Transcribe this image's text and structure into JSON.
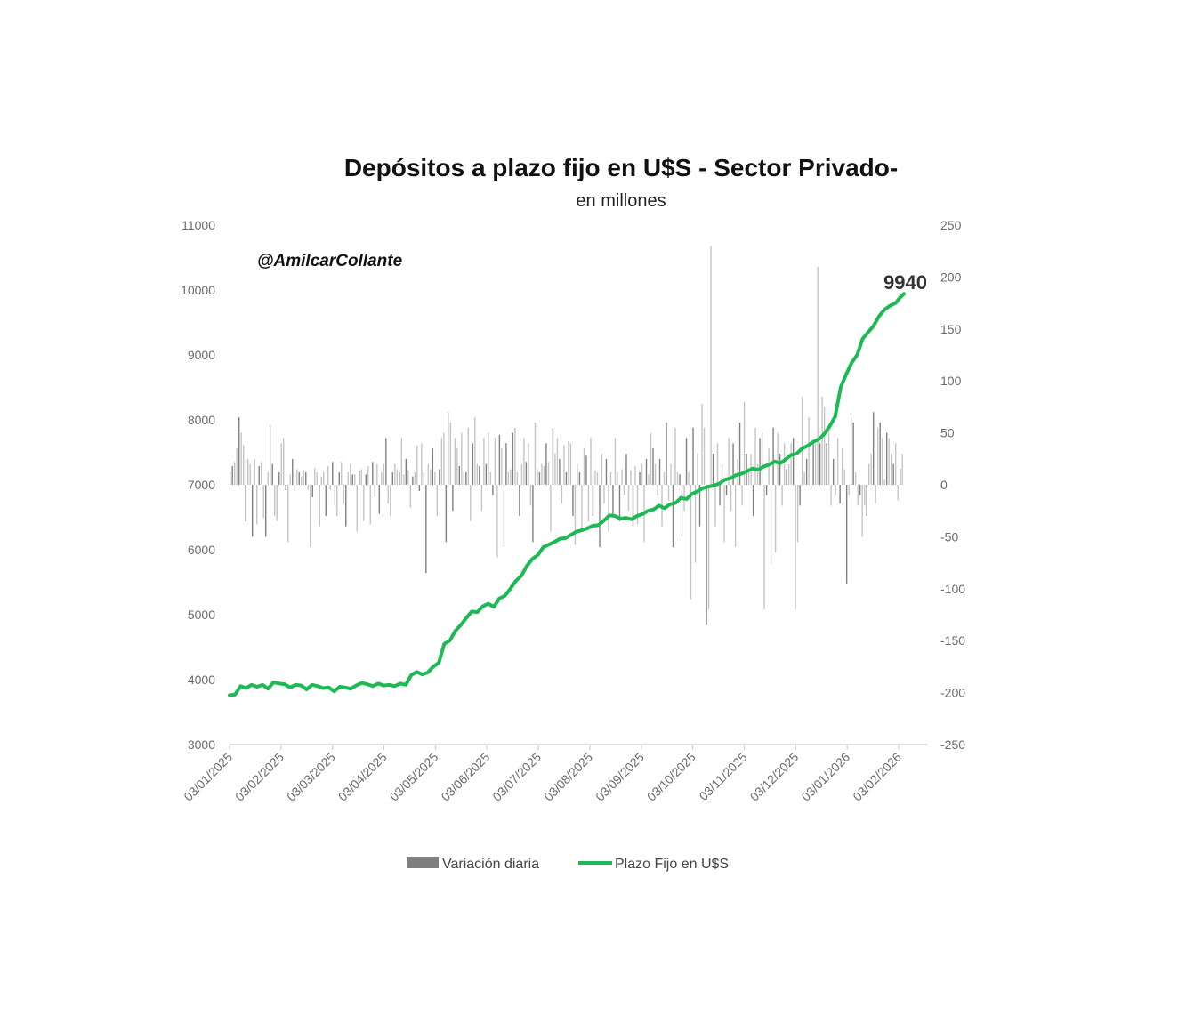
{
  "chart_data": {
    "type": "bar+line",
    "title": "Depósitos a plazo fijo en U$S - Sector Privado-",
    "subtitle": "en millones",
    "watermark": "@AmilcarCollante",
    "y_left": {
      "min": 3000,
      "max": 11000,
      "ticks": [
        "11000",
        "10000",
        "9000",
        "8000",
        "7000",
        "6000",
        "5000",
        "4000",
        "3000"
      ]
    },
    "y_right": {
      "min": -250,
      "max": 250,
      "ticks": [
        "250",
        "200",
        "150",
        "100",
        "50",
        "0",
        "-50",
        "-100",
        "-150",
        "-200",
        "-250"
      ]
    },
    "x_ticks": [
      "03/01/2025",
      "03/02/2025",
      "03/03/2025",
      "03/04/2025",
      "03/05/2025",
      "03/06/2025",
      "03/07/2025",
      "03/08/2025",
      "03/09/2025",
      "03/10/2025",
      "03/11/2025",
      "03/12/2025",
      "03/01/2026",
      "03/02/2026"
    ],
    "last_value_label": "9940",
    "legend": {
      "bars": "Variación diaria",
      "line": "Plazo Fijo en U$S"
    },
    "colors": {
      "line": "#1db954",
      "bars_dark": "#7f7f7f",
      "bars_light": "#c4c4c4",
      "axis": "#d0d0d0"
    },
    "line_series": {
      "name": "Plazo Fijo en U$S",
      "points": [
        [
          0,
          3760
        ],
        [
          4,
          3770
        ],
        [
          8,
          3900
        ],
        [
          12,
          3870
        ],
        [
          16,
          3920
        ],
        [
          20,
          3890
        ],
        [
          24,
          3920
        ],
        [
          28,
          3860
        ],
        [
          32,
          3960
        ],
        [
          36,
          3940
        ],
        [
          40,
          3930
        ],
        [
          44,
          3880
        ],
        [
          48,
          3920
        ],
        [
          52,
          3910
        ],
        [
          56,
          3850
        ],
        [
          60,
          3920
        ],
        [
          64,
          3900
        ],
        [
          68,
          3870
        ],
        [
          72,
          3880
        ],
        [
          76,
          3820
        ],
        [
          80,
          3890
        ],
        [
          84,
          3880
        ],
        [
          88,
          3860
        ],
        [
          92,
          3910
        ],
        [
          96,
          3950
        ],
        [
          100,
          3930
        ],
        [
          104,
          3900
        ],
        [
          108,
          3940
        ],
        [
          112,
          3910
        ],
        [
          116,
          3920
        ],
        [
          120,
          3900
        ],
        [
          124,
          3940
        ],
        [
          128,
          3920
        ],
        [
          132,
          4070
        ],
        [
          136,
          4120
        ],
        [
          140,
          4080
        ],
        [
          144,
          4110
        ],
        [
          148,
          4200
        ],
        [
          152,
          4260
        ],
        [
          156,
          4550
        ],
        [
          160,
          4600
        ],
        [
          164,
          4750
        ],
        [
          168,
          4840
        ],
        [
          172,
          4950
        ],
        [
          176,
          5050
        ],
        [
          180,
          5040
        ],
        [
          184,
          5130
        ],
        [
          188,
          5170
        ],
        [
          192,
          5120
        ],
        [
          196,
          5250
        ],
        [
          200,
          5290
        ],
        [
          204,
          5400
        ],
        [
          208,
          5520
        ],
        [
          212,
          5600
        ],
        [
          216,
          5750
        ],
        [
          220,
          5860
        ],
        [
          224,
          5920
        ],
        [
          228,
          6040
        ],
        [
          232,
          6080
        ],
        [
          236,
          6120
        ],
        [
          240,
          6170
        ],
        [
          244,
          6180
        ],
        [
          248,
          6230
        ],
        [
          252,
          6280
        ],
        [
          256,
          6300
        ],
        [
          260,
          6330
        ],
        [
          264,
          6370
        ],
        [
          268,
          6380
        ],
        [
          272,
          6450
        ],
        [
          276,
          6530
        ],
        [
          280,
          6520
        ],
        [
          284,
          6480
        ],
        [
          288,
          6490
        ],
        [
          292,
          6470
        ],
        [
          296,
          6520
        ],
        [
          300,
          6550
        ],
        [
          304,
          6600
        ],
        [
          308,
          6620
        ],
        [
          312,
          6680
        ],
        [
          316,
          6640
        ],
        [
          320,
          6700
        ],
        [
          324,
          6720
        ],
        [
          328,
          6800
        ],
        [
          332,
          6780
        ],
        [
          336,
          6860
        ],
        [
          340,
          6900
        ],
        [
          344,
          6950
        ],
        [
          348,
          6970
        ],
        [
          352,
          6990
        ],
        [
          356,
          7020
        ],
        [
          360,
          7080
        ],
        [
          364,
          7100
        ],
        [
          368,
          7150
        ],
        [
          372,
          7170
        ],
        [
          376,
          7210
        ],
        [
          380,
          7250
        ],
        [
          384,
          7230
        ],
        [
          388,
          7280
        ],
        [
          392,
          7310
        ],
        [
          396,
          7360
        ],
        [
          400,
          7330
        ],
        [
          404,
          7390
        ],
        [
          408,
          7460
        ],
        [
          412,
          7480
        ],
        [
          416,
          7560
        ],
        [
          420,
          7600
        ],
        [
          424,
          7660
        ],
        [
          428,
          7700
        ],
        [
          432,
          7780
        ],
        [
          436,
          7900
        ],
        [
          440,
          8050
        ],
        [
          444,
          8500
        ],
        [
          448,
          8700
        ],
        [
          452,
          8880
        ],
        [
          456,
          9000
        ],
        [
          460,
          9250
        ],
        [
          464,
          9350
        ],
        [
          468,
          9450
        ],
        [
          472,
          9600
        ],
        [
          476,
          9700
        ],
        [
          480,
          9760
        ],
        [
          484,
          9800
        ],
        [
          487,
          9880
        ],
        [
          490,
          9940
        ]
      ]
    },
    "bar_series": {
      "name": "Variación diaria",
      "values": [
        12,
        18,
        22,
        35,
        65,
        50,
        38,
        -35,
        25,
        20,
        -50,
        25,
        -38,
        18,
        22,
        -32,
        -50,
        12,
        58,
        20,
        -30,
        -35,
        12,
        40,
        45,
        -5,
        -55,
        10,
        25,
        -6,
        15,
        12,
        8,
        14,
        12,
        -5,
        -60,
        -12,
        16,
        12,
        -40,
        8,
        12,
        -30,
        18,
        -5,
        22,
        -20,
        -30,
        12,
        22,
        -18,
        -40,
        12,
        20,
        10,
        10,
        -45,
        14,
        15,
        -35,
        10,
        18,
        -38,
        22,
        -12,
        20,
        -28,
        12,
        20,
        45,
        -18,
        -30,
        12,
        20,
        15,
        12,
        45,
        10,
        25,
        14,
        -22,
        8,
        12,
        38,
        -6,
        40,
        12,
        -85,
        20,
        15,
        35,
        12,
        -30,
        15,
        45,
        50,
        -55,
        70,
        60,
        -25,
        45,
        35,
        18,
        50,
        12,
        12,
        55,
        -35,
        40,
        65,
        20,
        18,
        -25,
        45,
        20,
        50,
        12,
        -10,
        45,
        -70,
        48,
        35,
        -60,
        40,
        12,
        15,
        50,
        55,
        12,
        -30,
        20,
        45,
        22,
        40,
        -20,
        -55,
        60,
        15,
        12,
        20,
        18,
        40,
        22,
        -45,
        55,
        30,
        45,
        25,
        -18,
        38,
        12,
        42,
        40,
        -30,
        -58,
        20,
        12,
        -45,
        35,
        28,
        -35,
        45,
        -30,
        14,
        12,
        -60,
        30,
        -18,
        25,
        -45,
        12,
        -30,
        45,
        12,
        -35,
        15,
        -10,
        30,
        -25,
        14,
        -40,
        18,
        -38,
        12,
        20,
        -55,
        25,
        10,
        50,
        35,
        20,
        -10,
        25,
        -40,
        12,
        60,
        -15,
        20,
        -60,
        55,
        12,
        10,
        -50,
        -25,
        45,
        12,
        -110,
        55,
        -75,
        30,
        -40,
        78,
        55,
        -135,
        -120,
        230,
        30,
        -40,
        40,
        -20,
        20,
        -55,
        -10,
        45,
        -25,
        40,
        -60,
        25,
        60,
        -20,
        80,
        30,
        15,
        30,
        -30,
        55,
        20,
        45,
        50,
        -120,
        -10,
        35,
        -75,
        55,
        -65,
        50,
        30,
        -20,
        40,
        15,
        20,
        40,
        45,
        -120,
        -55,
        -20,
        85,
        12,
        25,
        65,
        -5,
        40,
        40,
        210,
        40,
        85,
        75,
        40,
        58,
        -20,
        25,
        -10,
        45,
        -18,
        35,
        15,
        -95,
        -10,
        65,
        60,
        12,
        -20,
        -10,
        -50,
        -20,
        -30,
        20,
        30,
        70,
        -18,
        55,
        60,
        45,
        5,
        50,
        45,
        30,
        20,
        40,
        -15,
        15,
        30
      ]
    }
  }
}
